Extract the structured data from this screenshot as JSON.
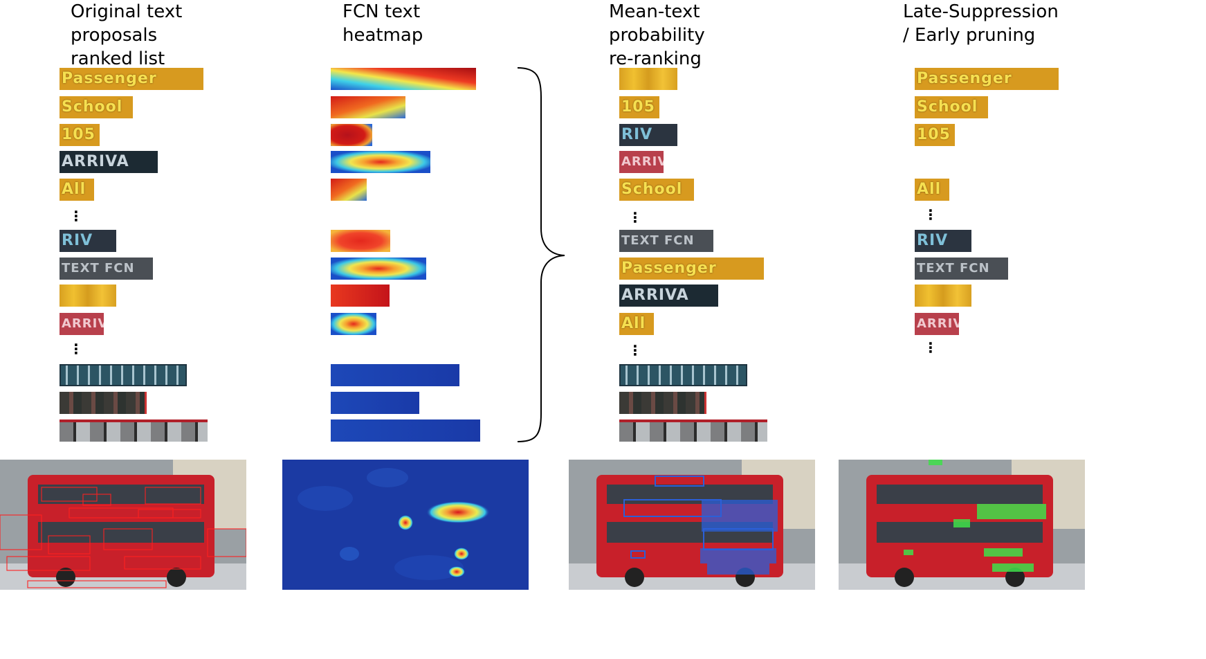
{
  "columns": {
    "original": {
      "title": "Original text\nproposals\nranked list"
    },
    "fcn": {
      "title": "FCN text\nheatmap"
    },
    "mean": {
      "title": "Mean-text\nprobability\nre-ranking"
    },
    "late": {
      "title": "Late-Suppression\n/ Early pruning"
    }
  },
  "crop_text": {
    "passenger": "Passenger",
    "school": "School",
    "n105": "105",
    "arriva": "ARRIVA",
    "all": "All",
    "riv": "RIV",
    "text_fcn": "TEXT FCN",
    "arriva_small": "ARRIVA"
  },
  "ellipsis": "⋮",
  "colors": {
    "heat_red": "#b5121b",
    "heat_blue": "#1a3aa8",
    "bus_red": "#c8202a",
    "box_red": "#ff2020",
    "box_blue": "#2b5fd8",
    "box_green": "#3fe04a"
  }
}
